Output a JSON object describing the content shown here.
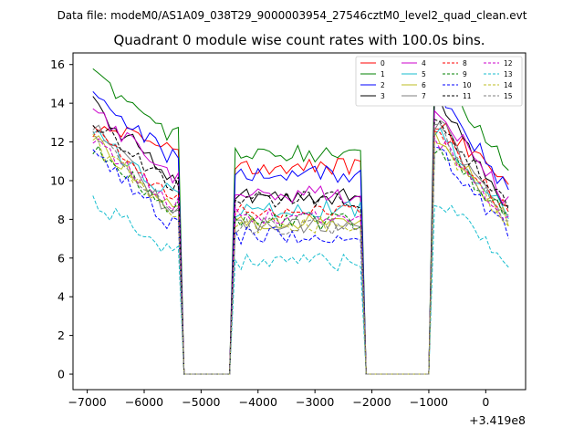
{
  "chart_data": {
    "type": "line",
    "suptitle": "Data file: modeM0/AS1A09_038T29_9000003954_27546cztM0_level2_quad_clean.evt",
    "title": "Quadrant 0 module wise count rates with 100.0s bins.",
    "xlabel": "",
    "ylabel": "",
    "x_offset_label": "+3.419e8",
    "xlim": [
      -7250,
      700
    ],
    "ylim": [
      -0.8,
      16.6
    ],
    "xticks": [
      -7000,
      -6000,
      -5000,
      -4000,
      -3000,
      -2000,
      -1000,
      0
    ],
    "xtick_labels": [
      "−7000",
      "−6000",
      "−5000",
      "−4000",
      "−3000",
      "−2000",
      "−1000",
      "0"
    ],
    "yticks": [
      0,
      2,
      4,
      6,
      8,
      10,
      12,
      14,
      16
    ],
    "ytick_labels": [
      "0",
      "2",
      "4",
      "6",
      "8",
      "10",
      "12",
      "14",
      "16"
    ],
    "grid": false,
    "legend_position": "top-right",
    "legend_columns": 4,
    "x_bins": [
      -6900,
      -6800,
      -6700,
      -6600,
      -6500,
      -6400,
      -6300,
      -6200,
      -6100,
      -6000,
      -5900,
      -5800,
      -5700,
      -5600,
      -5500,
      -5400,
      -5300,
      -5200,
      -5100,
      -5000,
      -4900,
      -4800,
      -4700,
      -4600,
      -4500,
      -4400,
      -4300,
      -4200,
      -4100,
      -4000,
      -3900,
      -3800,
      -3700,
      -3600,
      -3500,
      -3400,
      -3300,
      -3200,
      -3100,
      -3000,
      -2900,
      -2800,
      -2700,
      -2600,
      -2500,
      -2400,
      -2300,
      -2200,
      -2100,
      -2000,
      -1900,
      -1800,
      -1700,
      -1600,
      -1500,
      -1400,
      -1300,
      -1200,
      -1100,
      -1000,
      -900,
      -800,
      -700,
      -600,
      -500,
      -400,
      -300,
      -200,
      -100,
      0,
      100,
      200,
      300,
      400
    ],
    "series": [
      {
        "name": "0",
        "color": "#ff0000",
        "style": "solid",
        "level": 11.7,
        "end": 9.8,
        "peak": 13.0,
        "seed": 1
      },
      {
        "name": "1",
        "color": "#008000",
        "style": "solid",
        "level": 12.4,
        "end": 10.6,
        "peak": 15.5,
        "seed": 2
      },
      {
        "name": "2",
        "color": "#0000ff",
        "style": "solid",
        "level": 11.2,
        "end": 9.4,
        "peak": 14.4,
        "seed": 3
      },
      {
        "name": "3",
        "color": "#000000",
        "style": "solid",
        "level": 10.0,
        "end": 8.7,
        "peak": 14.0,
        "seed": 4
      },
      {
        "name": "4",
        "color": "#cc00cc",
        "style": "solid",
        "level": 10.1,
        "end": 8.8,
        "peak": 13.7,
        "seed": 5
      },
      {
        "name": "5",
        "color": "#17becf",
        "style": "solid",
        "level": 9.3,
        "end": 8.3,
        "peak": 12.4,
        "seed": 6
      },
      {
        "name": "6",
        "color": "#bcbd22",
        "style": "solid",
        "level": 8.6,
        "end": 7.9,
        "peak": 12.2,
        "seed": 7
      },
      {
        "name": "7",
        "color": "#7f7f7f",
        "style": "solid",
        "level": 8.4,
        "end": 7.8,
        "peak": 12.9,
        "seed": 8
      },
      {
        "name": "8",
        "color": "#ff0000",
        "style": "dashed",
        "level": 9.2,
        "end": 8.3,
        "peak": 12.5,
        "seed": 9
      },
      {
        "name": "9",
        "color": "#008000",
        "style": "dashed",
        "level": 8.6,
        "end": 8.0,
        "peak": 11.8,
        "seed": 10
      },
      {
        "name": "10",
        "color": "#0000ff",
        "style": "dashed",
        "level": 7.8,
        "end": 7.3,
        "peak": 11.4,
        "seed": 11
      },
      {
        "name": "11",
        "color": "#000000",
        "style": "dashed",
        "level": 9.8,
        "end": 8.6,
        "peak": 13.0,
        "seed": 12
      },
      {
        "name": "12",
        "color": "#cc00cc",
        "style": "dashed",
        "level": 8.9,
        "end": 8.1,
        "peak": 12.0,
        "seed": 13
      },
      {
        "name": "13",
        "color": "#17becf",
        "style": "dashed",
        "level": 6.3,
        "end": 5.8,
        "peak": 9.0,
        "seed": 14
      },
      {
        "name": "14",
        "color": "#bcbd22",
        "style": "dashed",
        "level": 8.4,
        "end": 7.7,
        "peak": 12.0,
        "seed": 15
      },
      {
        "name": "15",
        "color": "#7f7f7f",
        "style": "dashed",
        "level": 8.3,
        "end": 7.6,
        "peak": 12.6,
        "seed": 16
      }
    ],
    "zero_intervals": [
      [
        -5300,
        -4500
      ],
      [
        -2100,
        -1000
      ]
    ]
  }
}
